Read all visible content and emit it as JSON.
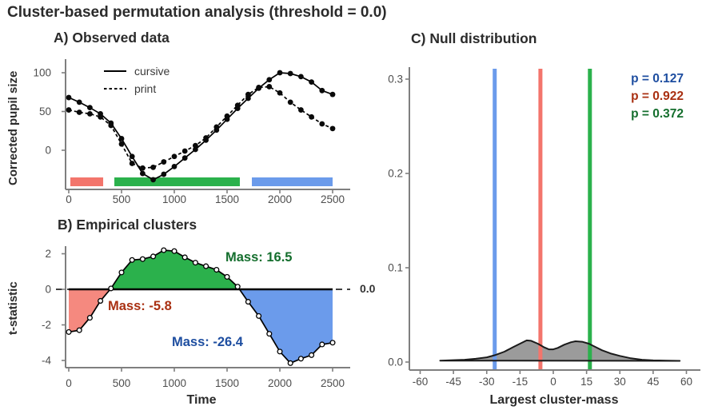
{
  "page": {
    "title": "Cluster-based permutation analysis (threshold = 0.0)"
  },
  "colors": {
    "cluster_red": "#F3756C",
    "cluster_green": "#2BB14C",
    "cluster_blue": "#6B9BEB",
    "text_red": "#A93012",
    "text_green": "#146E2D",
    "text_blue": "#1E4EA0",
    "axis_gray": "#7F7F7F",
    "tick_text": "#4D4D4D",
    "density_fill": "#9B9B9B"
  },
  "chart_data": [
    {
      "id": "observed",
      "type": "line",
      "title": "A) Observed data",
      "ylabel": "Corrected pupil size",
      "x": [
        0,
        100,
        200,
        300,
        400,
        500,
        600,
        700,
        800,
        900,
        1000,
        1100,
        1200,
        1300,
        1400,
        1500,
        1600,
        1700,
        1800,
        1900,
        2000,
        2100,
        2200,
        2300,
        2400,
        2500
      ],
      "series": [
        {
          "name": "cursive",
          "style": "solid",
          "values": [
            68,
            62,
            55,
            47,
            35,
            15,
            -8,
            -30,
            -38,
            -31,
            -21,
            -10,
            1,
            13,
            26,
            40,
            54,
            67,
            80,
            91,
            100,
            99,
            95,
            88,
            77,
            72
          ]
        },
        {
          "name": "print",
          "style": "dashed",
          "values": [
            52,
            49,
            47,
            43,
            32,
            8,
            -17,
            -23,
            -22,
            -15,
            -8,
            -1,
            6,
            16,
            30,
            44,
            58,
            72,
            81,
            82,
            74,
            62,
            52,
            43,
            34,
            28
          ]
        }
      ],
      "xticks": [
        0,
        500,
        1000,
        1500,
        2000,
        2500
      ],
      "yticks": [
        0,
        50,
        100
      ],
      "cluster_bars": [
        {
          "from": 15,
          "to": 326,
          "color": "#F3756C"
        },
        {
          "from": 432,
          "to": 1621,
          "color": "#2BB14C"
        },
        {
          "from": 1735,
          "to": 2500,
          "color": "#6B9BEB"
        }
      ]
    },
    {
      "id": "clusters",
      "type": "area-line",
      "title": "B) Empirical clusters",
      "ylabel": "t-statistic",
      "xlabel": "Time",
      "x": [
        0,
        100,
        200,
        300,
        400,
        500,
        600,
        700,
        800,
        900,
        1000,
        1100,
        1200,
        1300,
        1400,
        1500,
        1600,
        1700,
        1800,
        1900,
        2000,
        2100,
        2200,
        2300,
        2400,
        2500
      ],
      "values": [
        -2.4,
        -2.3,
        -1.6,
        -0.65,
        0.05,
        0.95,
        1.65,
        1.7,
        1.85,
        2.2,
        2.15,
        1.8,
        1.5,
        1.3,
        1.1,
        0.7,
        0.15,
        -0.7,
        -1.5,
        -2.5,
        -3.5,
        -4.15,
        -3.9,
        -3.7,
        -3.1,
        -3.0
      ],
      "xticks": [
        0,
        500,
        1000,
        1500,
        2000,
        2500
      ],
      "yticks": [
        -4,
        -2,
        0,
        2
      ],
      "threshold": 0,
      "threshold_label": "0.0",
      "clusters": [
        {
          "from": 0,
          "to": 393,
          "color": "#F5897F",
          "mass": -5.8,
          "mass_label": "Mass: -5.8"
        },
        {
          "from": 393,
          "to": 1618,
          "color": "#2BB14C",
          "mass": 16.5,
          "mass_label": "Mass: 16.5"
        },
        {
          "from": 1618,
          "to": 2500,
          "color": "#6B9BEB",
          "mass": -26.4,
          "mass_label": "Mass: -26.4"
        }
      ]
    },
    {
      "id": "null-distribution",
      "type": "density",
      "title": "C) Null distribution",
      "xlabel": "Largest cluster-mass",
      "xticks": [
        -60,
        -45,
        -30,
        -15,
        0,
        15,
        30,
        45,
        60
      ],
      "yticks": [
        0,
        0.1,
        0.2,
        0.3
      ],
      "xlim": [
        -65,
        65
      ],
      "ylim": [
        0,
        0.31
      ],
      "density": {
        "x": [
          -51,
          -45,
          -40,
          -35,
          -30,
          -26,
          -22,
          -18,
          -15,
          -12,
          -10,
          -7,
          -4,
          -2,
          0,
          2,
          5,
          8,
          10,
          13,
          16,
          19,
          22,
          26,
          30,
          35,
          40,
          45,
          51,
          57
        ],
        "y": [
          0.0015,
          0.002,
          0.0025,
          0.0035,
          0.005,
          0.0075,
          0.011,
          0.016,
          0.0195,
          0.023,
          0.0225,
          0.0195,
          0.0155,
          0.0135,
          0.0135,
          0.015,
          0.0185,
          0.021,
          0.022,
          0.0215,
          0.0195,
          0.016,
          0.0125,
          0.009,
          0.0065,
          0.004,
          0.0025,
          0.0018,
          0.0015,
          0.0013
        ]
      },
      "vlines": [
        {
          "x": -26.4,
          "color": "#6B9BEB",
          "p_label": "p = 0.127"
        },
        {
          "x": -5.8,
          "color": "#F3756C",
          "p_label": "p = 0.922"
        },
        {
          "x": 16.5,
          "color": "#2BB14C",
          "p_label": "p = 0.372"
        }
      ]
    }
  ]
}
